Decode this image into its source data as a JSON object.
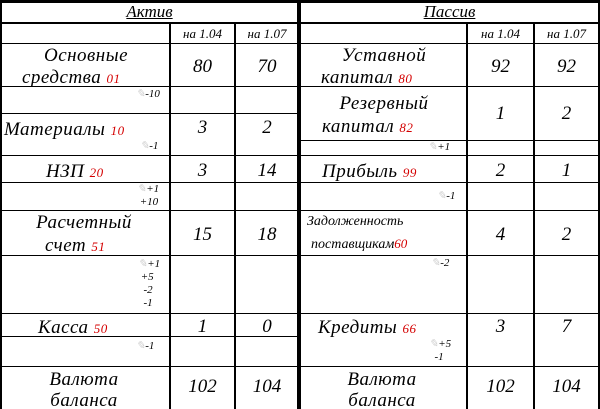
{
  "headers": {
    "assets": "Актив",
    "liabilities": "Пассив"
  },
  "cols": {
    "d1": "на 1.04",
    "d2": "на 1.07"
  },
  "assets": [
    {
      "name1": "Основные",
      "name2": "средства",
      "code": "01",
      "v1": "80",
      "v2": "70",
      "changes": [
        "-10"
      ]
    },
    {
      "name1": "Материалы",
      "code": "10",
      "v1": "3",
      "v2": "2",
      "changes": [
        "-1"
      ]
    },
    {
      "name1": "НЗП",
      "code": "20",
      "v1": "3",
      "v2": "14",
      "changes": [
        "+1",
        "+10"
      ]
    },
    {
      "name1": "Расчетный",
      "name2": "счет",
      "code": "51",
      "v1": "15",
      "v2": "18",
      "changes": [
        "+1",
        "+5",
        "-2",
        "-1"
      ]
    },
    {
      "name1": "Касса",
      "code": "50",
      "v1": "1",
      "v2": "0",
      "changes": [
        "-1"
      ]
    },
    {
      "name1": "Валюта",
      "name2": "баланса",
      "v1": "102",
      "v2": "104"
    }
  ],
  "liabilities": [
    {
      "name1": "Уставной",
      "name2": "капитал",
      "code": "80",
      "v1": "92",
      "v2": "92"
    },
    {
      "name1": "Резервный",
      "name2": "капитал",
      "code": "82",
      "v1": "1",
      "v2": "2",
      "changes": [
        "+1"
      ]
    },
    {
      "name1": "Прибыль",
      "code": "99",
      "v1": "2",
      "v2": "1",
      "changes": [
        "-1"
      ]
    },
    {
      "name1": "Задолженность",
      "name2": "поставщикам",
      "code": "60",
      "v1": "4",
      "v2": "2",
      "changes": [
        "-2"
      ]
    },
    {
      "name1": "Кредиты",
      "code": "66",
      "v1": "3",
      "v2": "7",
      "changes": [
        "+5",
        "-1"
      ]
    },
    {
      "name1": "Валюта",
      "name2": "баланса",
      "v1": "102",
      "v2": "104"
    }
  ]
}
